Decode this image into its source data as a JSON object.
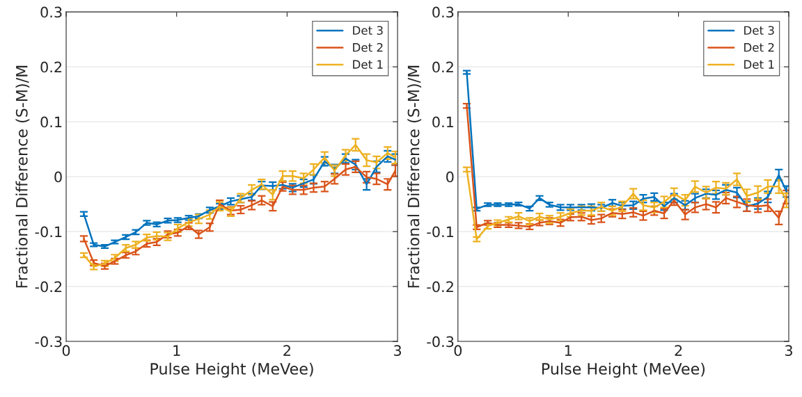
{
  "chart_data": [
    {
      "type": "line",
      "xlabel": "Pulse Height (MeVee)",
      "ylabel": "Fractional Difference (S-M)/M",
      "x": [
        0.16,
        0.25,
        0.35,
        0.44,
        0.54,
        0.63,
        0.73,
        0.82,
        0.92,
        1.01,
        1.11,
        1.2,
        1.3,
        1.39,
        1.49,
        1.58,
        1.68,
        1.77,
        1.87,
        1.96,
        2.05,
        2.15,
        2.24,
        2.34,
        2.43,
        2.53,
        2.62,
        2.72,
        2.81,
        2.91,
        2.98
      ],
      "series": [
        {
          "name": "Det 3",
          "color": "#0072bd",
          "values": [
            -0.068,
            -0.124,
            -0.127,
            -0.119,
            -0.11,
            -0.101,
            -0.084,
            -0.087,
            -0.08,
            -0.079,
            -0.075,
            -0.072,
            -0.061,
            -0.054,
            -0.045,
            -0.041,
            -0.037,
            -0.016,
            -0.017,
            -0.015,
            -0.02,
            -0.012,
            -0.005,
            0.028,
            0.014,
            0.033,
            0.022,
            -0.014,
            0.018,
            0.037,
            0.031
          ],
          "errors": [
            0.004,
            0.003,
            0.003,
            0.003,
            0.004,
            0.004,
            0.004,
            0.004,
            0.004,
            0.004,
            0.004,
            0.004,
            0.005,
            0.005,
            0.006,
            0.006,
            0.006,
            0.007,
            0.007,
            0.007,
            0.007,
            0.007,
            0.008,
            0.008,
            0.008,
            0.008,
            0.009,
            0.01,
            0.01,
            0.01,
            0.01
          ]
        },
        {
          "name": "Det 2",
          "color": "#d95319",
          "values": [
            -0.113,
            -0.157,
            -0.163,
            -0.154,
            -0.143,
            -0.136,
            -0.122,
            -0.119,
            -0.105,
            -0.102,
            -0.09,
            -0.105,
            -0.092,
            -0.05,
            -0.062,
            -0.06,
            -0.052,
            -0.043,
            -0.054,
            -0.018,
            -0.024,
            -0.024,
            -0.02,
            -0.018,
            -0.004,
            0.013,
            0.018,
            -0.001,
            -0.004,
            -0.014,
            0.011
          ],
          "errors": [
            0.005,
            0.005,
            0.005,
            0.005,
            0.005,
            0.006,
            0.006,
            0.006,
            0.006,
            0.006,
            0.006,
            0.007,
            0.007,
            0.007,
            0.007,
            0.007,
            0.008,
            0.008,
            0.008,
            0.008,
            0.008,
            0.008,
            0.008,
            0.009,
            0.009,
            0.01,
            0.01,
            0.01,
            0.01,
            0.01,
            0.01
          ]
        },
        {
          "name": "Det 1",
          "color": "#edb120",
          "values": [
            -0.143,
            -0.164,
            -0.158,
            -0.148,
            -0.13,
            -0.124,
            -0.111,
            -0.108,
            -0.109,
            -0.094,
            -0.083,
            -0.077,
            -0.069,
            -0.054,
            -0.064,
            -0.039,
            -0.024,
            -0.014,
            -0.033,
            0.001,
            0.001,
            -0.003,
            0.013,
            0.035,
            0.011,
            0.039,
            0.058,
            0.03,
            0.026,
            0.043,
            0.035
          ],
          "errors": [
            0.004,
            0.005,
            0.005,
            0.006,
            0.006,
            0.006,
            0.006,
            0.007,
            0.007,
            0.007,
            0.007,
            0.008,
            0.008,
            0.008,
            0.008,
            0.008,
            0.009,
            0.009,
            0.009,
            0.009,
            0.009,
            0.009,
            0.01,
            0.01,
            0.01,
            0.01,
            0.011,
            0.011,
            0.011,
            0.011,
            0.011
          ]
        }
      ],
      "xlim": [
        0,
        3
      ],
      "xticks": [
        0,
        1,
        2,
        3
      ],
      "ylim": [
        -0.3,
        0.3
      ],
      "yticks": [
        {
          "value": -0.3,
          "label": "-0.3"
        },
        {
          "value": -0.2,
          "label": "-0.2"
        },
        {
          "value": -0.1,
          "label": "-0.1"
        },
        0,
        0.1,
        0.2,
        0.3
      ],
      "grid": "y",
      "legend": "top right"
    },
    {
      "type": "line",
      "xlabel": "Pulse Height (MeVee)",
      "ylabel": "Fractional Difference (S-M)/M",
      "x": [
        0.08,
        0.17,
        0.27,
        0.36,
        0.46,
        0.55,
        0.65,
        0.74,
        0.83,
        0.93,
        1.02,
        1.12,
        1.21,
        1.3,
        1.4,
        1.49,
        1.59,
        1.68,
        1.78,
        1.87,
        1.96,
        2.06,
        2.15,
        2.25,
        2.34,
        2.43,
        2.53,
        2.62,
        2.72,
        2.81,
        2.91,
        2.98
      ],
      "series": [
        {
          "name": "Det 3",
          "color": "#0072bd",
          "values": [
            0.19,
            -0.059,
            -0.051,
            -0.051,
            -0.051,
            -0.05,
            -0.058,
            -0.039,
            -0.051,
            -0.056,
            -0.056,
            -0.056,
            -0.056,
            -0.057,
            -0.048,
            -0.053,
            -0.052,
            -0.04,
            -0.037,
            -0.054,
            -0.039,
            -0.052,
            -0.039,
            -0.031,
            -0.033,
            -0.024,
            -0.029,
            -0.054,
            -0.049,
            -0.037,
            0.003,
            -0.027
          ],
          "errors": [
            0.003,
            0.003,
            0.003,
            0.003,
            0.003,
            0.003,
            0.004,
            0.004,
            0.004,
            0.005,
            0.005,
            0.005,
            0.006,
            0.006,
            0.006,
            0.006,
            0.007,
            0.007,
            0.007,
            0.007,
            0.008,
            0.008,
            0.008,
            0.008,
            0.008,
            0.009,
            0.009,
            0.009,
            0.01,
            0.01,
            0.01,
            0.01
          ]
        },
        {
          "name": "Det 2",
          "color": "#d95319",
          "values": [
            0.129,
            -0.092,
            -0.084,
            -0.088,
            -0.088,
            -0.089,
            -0.091,
            -0.084,
            -0.081,
            -0.084,
            -0.074,
            -0.073,
            -0.079,
            -0.076,
            -0.066,
            -0.068,
            -0.065,
            -0.071,
            -0.062,
            -0.067,
            -0.043,
            -0.069,
            -0.056,
            -0.05,
            -0.056,
            -0.039,
            -0.046,
            -0.052,
            -0.054,
            -0.052,
            -0.075,
            -0.037
          ],
          "errors": [
            0.004,
            0.004,
            0.004,
            0.004,
            0.004,
            0.005,
            0.005,
            0.005,
            0.006,
            0.006,
            0.006,
            0.007,
            0.007,
            0.007,
            0.007,
            0.008,
            0.008,
            0.008,
            0.008,
            0.009,
            0.009,
            0.009,
            0.009,
            0.01,
            0.01,
            0.01,
            0.01,
            0.011,
            0.011,
            0.011,
            0.012,
            0.012
          ]
        },
        {
          "name": "Det 1",
          "color": "#edb120",
          "values": [
            0.013,
            -0.114,
            -0.09,
            -0.084,
            -0.078,
            -0.072,
            -0.081,
            -0.073,
            -0.078,
            -0.073,
            -0.066,
            -0.062,
            -0.062,
            -0.055,
            -0.062,
            -0.054,
            -0.031,
            -0.052,
            -0.056,
            -0.046,
            -0.031,
            -0.043,
            -0.018,
            -0.029,
            -0.02,
            -0.022,
            -0.005,
            -0.035,
            -0.029,
            -0.018,
            -0.018,
            -0.043
          ],
          "errors": [
            0.004,
            0.004,
            0.005,
            0.005,
            0.005,
            0.006,
            0.006,
            0.006,
            0.007,
            0.007,
            0.007,
            0.008,
            0.008,
            0.008,
            0.008,
            0.009,
            0.009,
            0.009,
            0.009,
            0.01,
            0.01,
            0.01,
            0.01,
            0.011,
            0.011,
            0.011,
            0.011,
            0.012,
            0.012,
            0.012,
            0.012,
            0.013
          ]
        }
      ],
      "xlim": [
        0,
        3
      ],
      "xticks": [
        0,
        1,
        2,
        3
      ],
      "ylim": [
        -0.3,
        0.3
      ],
      "yticks": [
        {
          "value": -0.3,
          "label": "-0.3"
        },
        {
          "value": -0.2,
          "label": "-0.2"
        },
        {
          "value": -0.1,
          "label": "-0.1"
        },
        0,
        0.1,
        0.2,
        0.3
      ],
      "grid": "y",
      "legend": "top right"
    }
  ]
}
